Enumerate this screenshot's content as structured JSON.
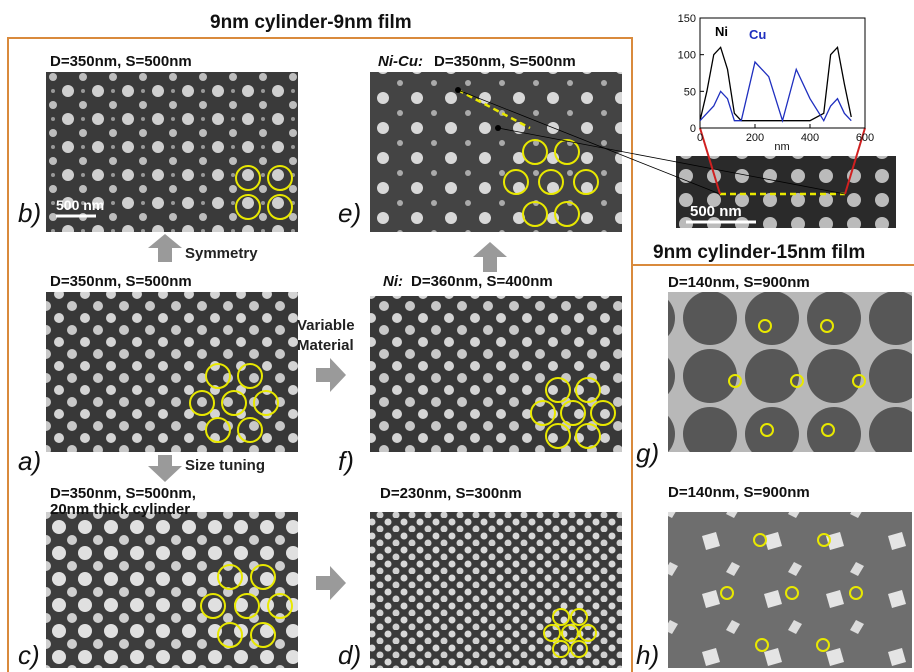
{
  "title": "9nm cylinder-9nm film",
  "subtitle_right": "9nm cylinder-15nm film",
  "panels": {
    "b": {
      "label": "b)",
      "caption": "D=350nm, S=500nm",
      "scale_bar": "500 nm"
    },
    "e": {
      "label": "e)",
      "prefix": "Ni-Cu:",
      "caption": "D=350nm, S=500nm"
    },
    "a": {
      "label": "a)",
      "caption": "D=350nm, S=500nm"
    },
    "f": {
      "label": "f)",
      "prefix": "Ni:",
      "caption": "D=360nm, S=400nm"
    },
    "c": {
      "label": "c)",
      "caption_lines": [
        "D=350nm, S=500nm,",
        "20nm thick cylinder"
      ]
    },
    "d": {
      "label": "d)",
      "caption": "D=230nm, S=300nm"
    },
    "g": {
      "label": "g)",
      "caption": "D=140nm, S=900nm"
    },
    "h": {
      "label": "h)",
      "caption": "D=140nm, S=900nm"
    }
  },
  "annotations": {
    "symmetry": "Symmetry",
    "variable_material": [
      "Variable",
      "Material"
    ],
    "size_tuning": "Size tuning",
    "inset_scale_bar": "500 nm"
  },
  "profile_chart": {
    "type": "line",
    "x_label": "nm",
    "xlim": [
      0,
      600
    ],
    "ylim": [
      0,
      150
    ],
    "xticks": [
      0,
      200,
      400,
      600
    ],
    "yticks": [
      0,
      50,
      100,
      150
    ],
    "x": [
      0,
      25,
      50,
      75,
      100,
      125,
      150,
      200,
      250,
      300,
      350,
      400,
      450,
      475,
      500,
      525,
      550
    ],
    "series": [
      {
        "name": "Ni",
        "color": "#000000",
        "values": [
          10,
          50,
          100,
          110,
          80,
          20,
          10,
          10,
          10,
          10,
          10,
          10,
          20,
          100,
          110,
          60,
          15
        ]
      },
      {
        "name": "Cu",
        "color": "#1f2fbf",
        "values": [
          10,
          20,
          30,
          50,
          40,
          10,
          10,
          90,
          70,
          10,
          80,
          40,
          10,
          30,
          40,
          20,
          10
        ]
      }
    ]
  }
}
